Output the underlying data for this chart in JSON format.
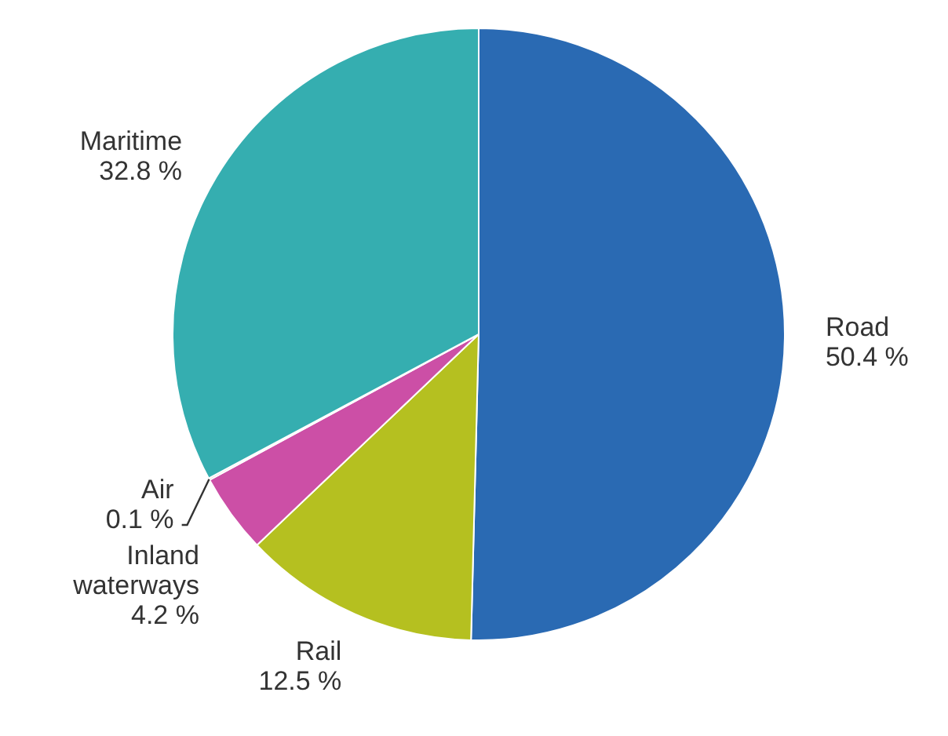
{
  "chart_data": {
    "type": "pie",
    "categories": [
      "Road",
      "Rail",
      "Inland waterways",
      "Air",
      "Maritime"
    ],
    "values": [
      50.4,
      12.5,
      4.2,
      0.1,
      32.8
    ],
    "value_labels": [
      "50.4 %",
      "12.5 %",
      "4.2 %",
      "0.1 %",
      "32.8 %"
    ],
    "colors": [
      "#2a6ab3",
      "#b5c020",
      "#cc4fa6",
      "#e07a7a",
      "#35aeb0"
    ],
    "legend": false
  }
}
